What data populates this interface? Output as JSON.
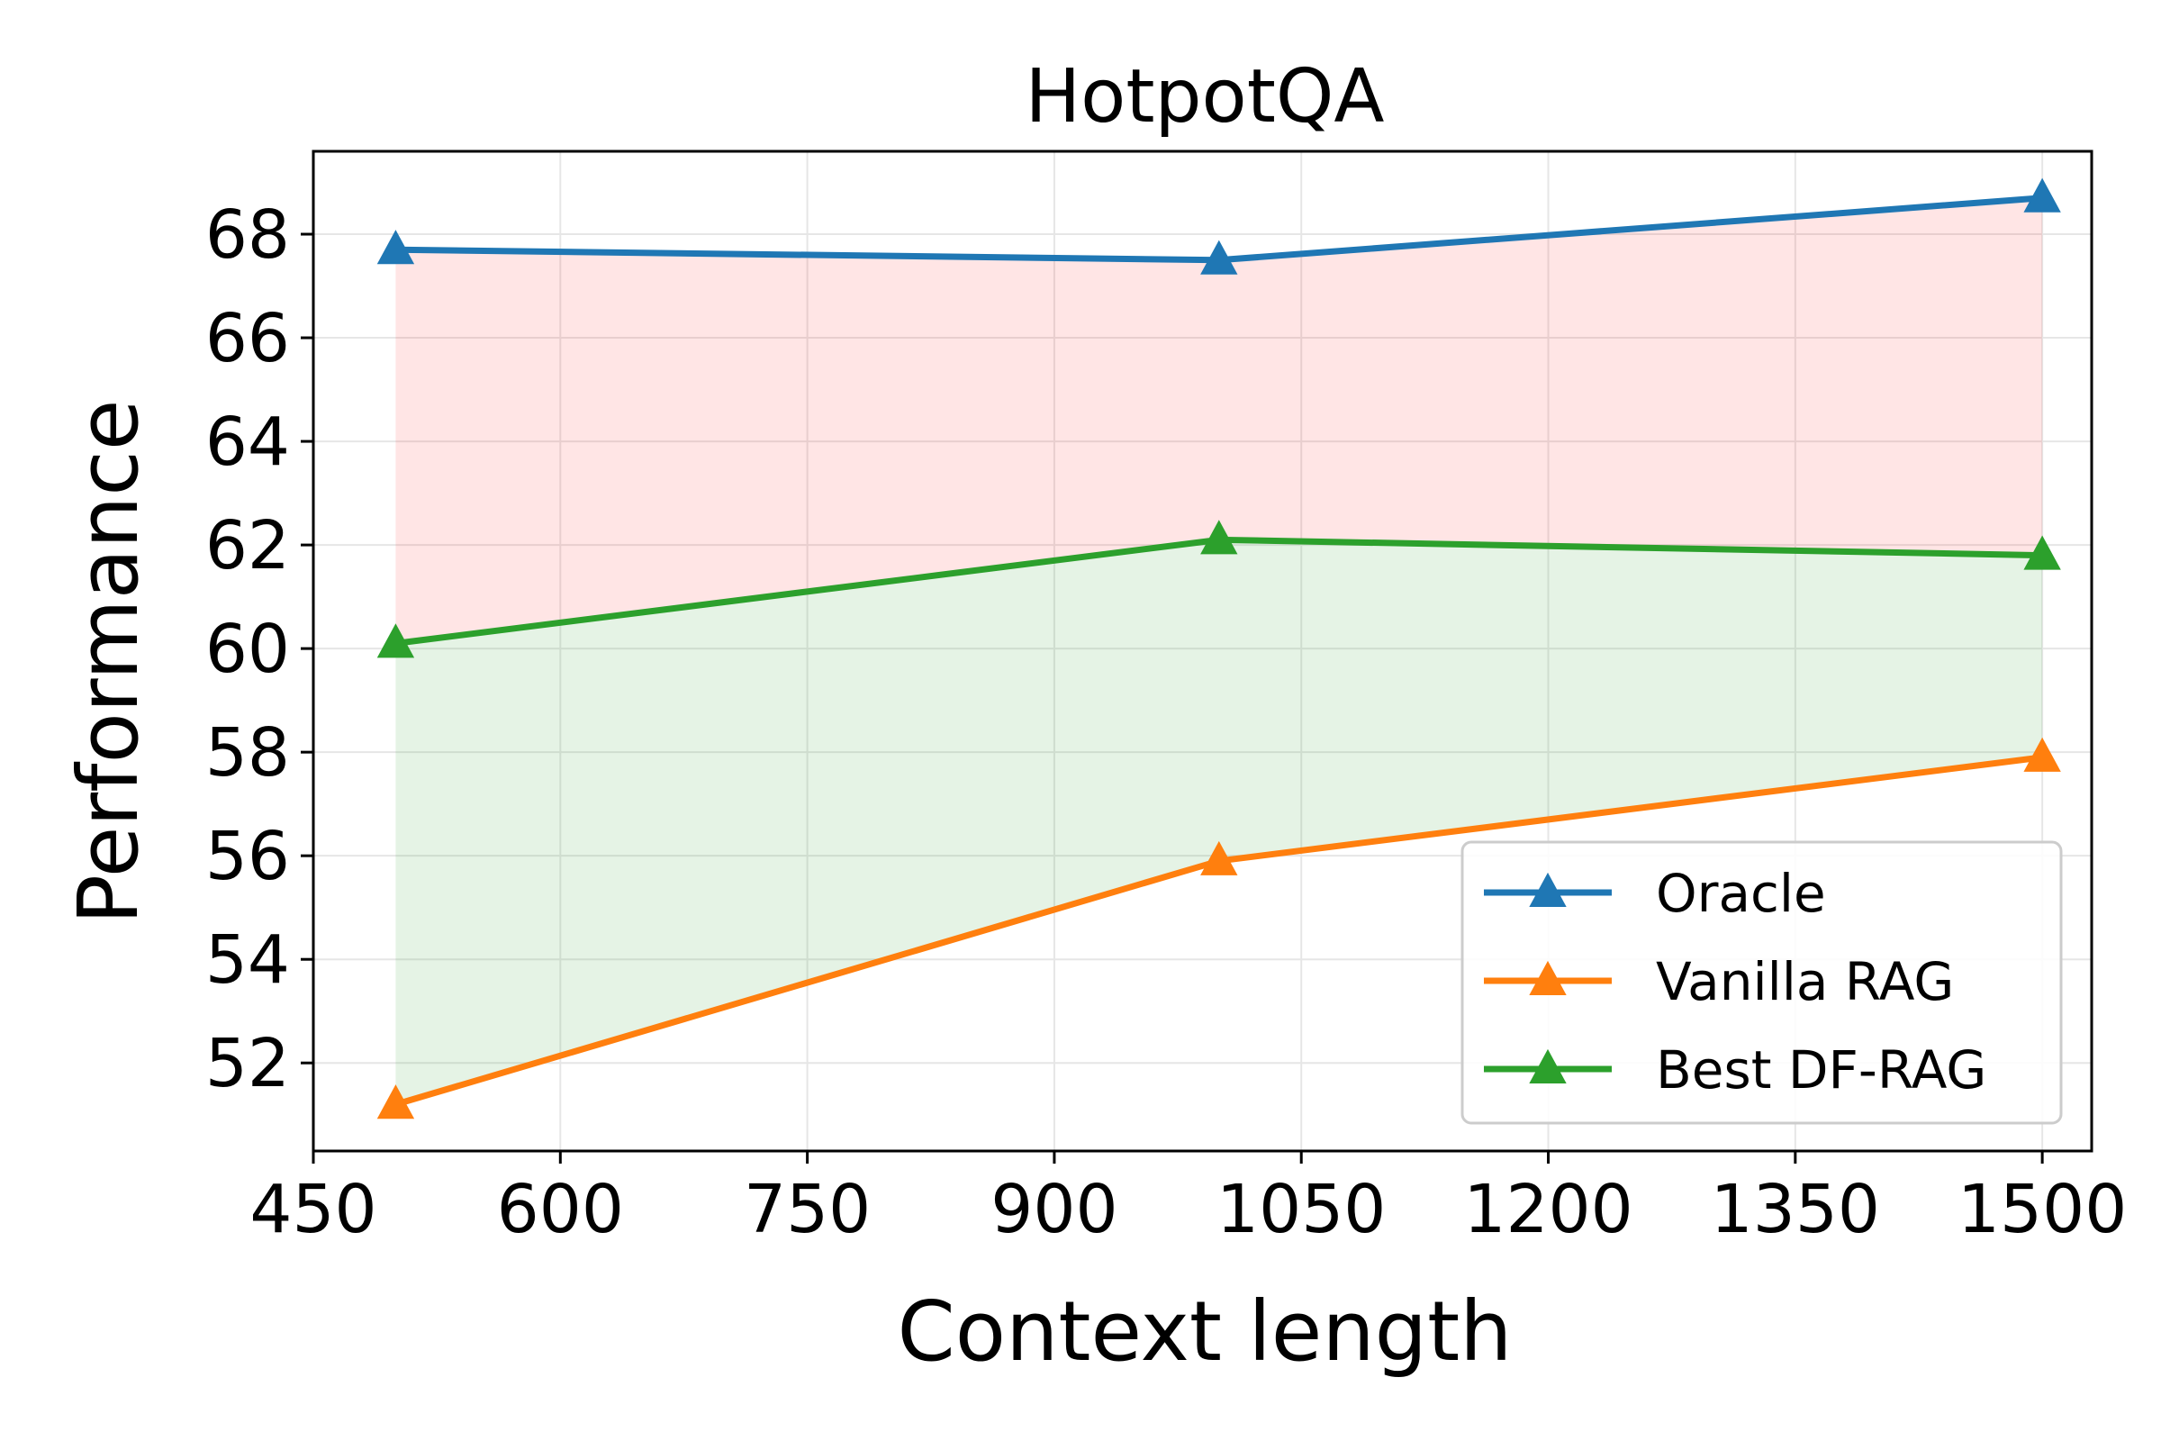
{
  "chart_data": {
    "type": "line",
    "title": "HotpotQA",
    "xlabel": "Context length",
    "ylabel": "Performance",
    "x": [
      500,
      1000,
      1500
    ],
    "xlim": [
      450,
      1530
    ],
    "ylim": [
      50.3,
      69.6
    ],
    "xticks": [
      450,
      600,
      750,
      900,
      1050,
      1200,
      1350,
      1500
    ],
    "yticks": [
      52,
      54,
      56,
      58,
      60,
      62,
      64,
      66,
      68
    ],
    "grid": true,
    "legend_position": "lower-right",
    "series": [
      {
        "name": "Oracle",
        "values": [
          67.7,
          67.5,
          68.7
        ],
        "color": "#1f77b4",
        "marker": "triangle"
      },
      {
        "name": "Vanilla RAG",
        "values": [
          51.2,
          55.9,
          57.9
        ],
        "color": "#ff7f0e",
        "marker": "triangle"
      },
      {
        "name": "Best DF-RAG",
        "values": [
          60.1,
          62.1,
          61.8
        ],
        "color": "#2ca02c",
        "marker": "triangle"
      }
    ],
    "fills": [
      {
        "between": [
          "Oracle",
          "Best DF-RAG"
        ],
        "color": "#ff0000",
        "opacity": 0.1
      },
      {
        "between": [
          "Best DF-RAG",
          "Vanilla RAG"
        ],
        "color": "#2ca02c",
        "opacity": 0.12
      }
    ]
  }
}
